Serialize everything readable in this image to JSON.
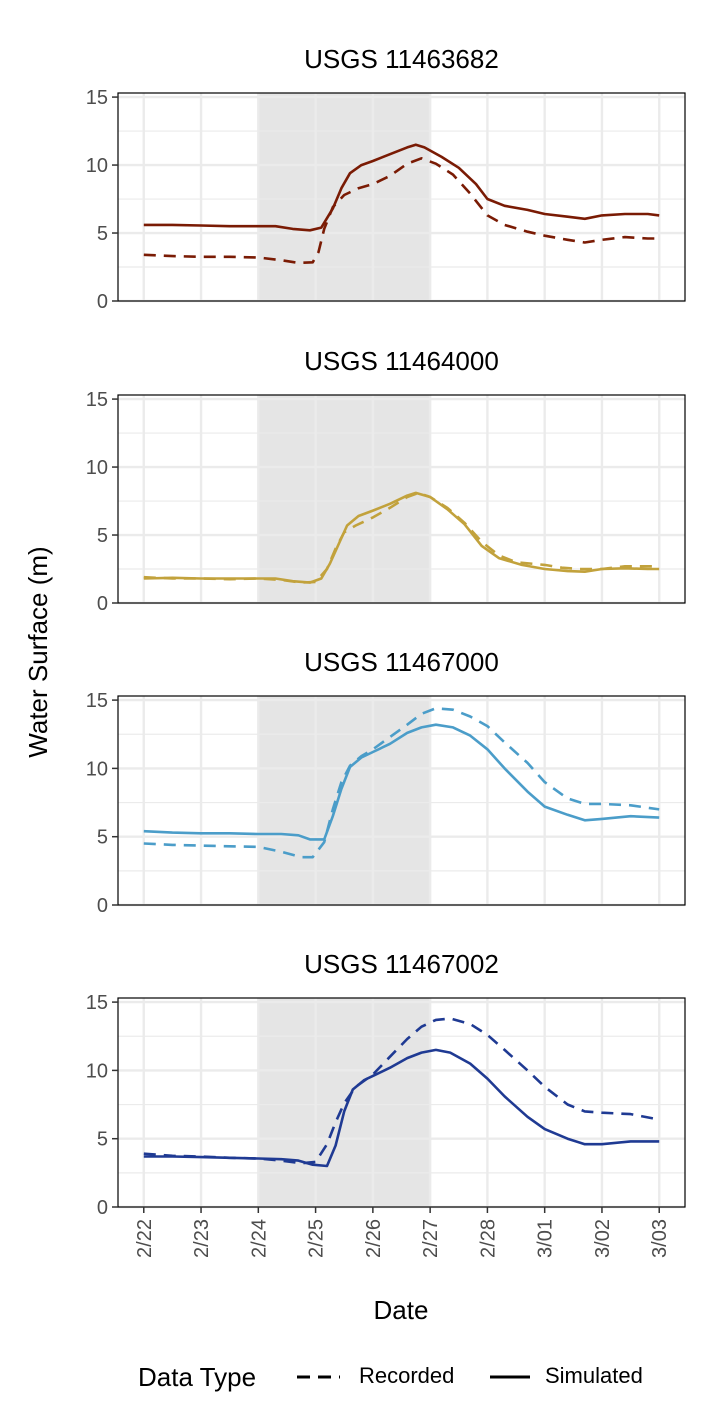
{
  "chart_data": {
    "type": "line",
    "ylabel": "Water Surface (m)",
    "xlabel": "Date",
    "x_tick_labels": [
      "2/22",
      "2/23",
      "2/24",
      "2/25",
      "2/26",
      "2/27",
      "2/28",
      "3/01",
      "3/02",
      "3/03"
    ],
    "x_tick_values": [
      0,
      1,
      2,
      3,
      4,
      5,
      6,
      7,
      8,
      9
    ],
    "x_range": [
      -0.45,
      9.45
    ],
    "y_range": [
      0,
      15.3
    ],
    "y_ticks": [
      0,
      5,
      10,
      15
    ],
    "shaded_interval": [
      2,
      5
    ],
    "grid": true,
    "legend": {
      "title": "Data Type",
      "position": "bottom",
      "entries": [
        "Recorded",
        "Simulated"
      ]
    },
    "panels": [
      {
        "title": "USGS 11463682",
        "color": "#7a1b04",
        "series": [
          {
            "name": "Recorded",
            "style": "dashed",
            "points": [
              [
                0,
                3.4
              ],
              [
                0.5,
                3.3
              ],
              [
                1,
                3.25
              ],
              [
                1.5,
                3.25
              ],
              [
                2,
                3.2
              ],
              [
                2.4,
                3.0
              ],
              [
                2.7,
                2.8
              ],
              [
                2.95,
                2.85
              ],
              [
                3.05,
                3.6
              ],
              [
                3.15,
                5.3
              ],
              [
                3.3,
                6.9
              ],
              [
                3.5,
                7.8
              ],
              [
                3.75,
                8.3
              ],
              [
                4,
                8.6
              ],
              [
                4.3,
                9.2
              ],
              [
                4.6,
                10.1
              ],
              [
                4.85,
                10.5
              ],
              [
                5.1,
                10.1
              ],
              [
                5.4,
                9.3
              ],
              [
                5.7,
                7.9
              ],
              [
                6,
                6.3
              ],
              [
                6.3,
                5.6
              ],
              [
                6.7,
                5.1
              ],
              [
                7,
                4.8
              ],
              [
                7.4,
                4.5
              ],
              [
                7.7,
                4.3
              ],
              [
                8,
                4.5
              ],
              [
                8.4,
                4.7
              ],
              [
                8.8,
                4.6
              ],
              [
                9,
                4.6
              ]
            ]
          },
          {
            "name": "Simulated",
            "style": "solid",
            "points": [
              [
                0,
                5.6
              ],
              [
                0.5,
                5.6
              ],
              [
                1,
                5.55
              ],
              [
                1.5,
                5.5
              ],
              [
                2,
                5.5
              ],
              [
                2.3,
                5.5
              ],
              [
                2.6,
                5.3
              ],
              [
                2.9,
                5.2
              ],
              [
                3.1,
                5.4
              ],
              [
                3.3,
                6.8
              ],
              [
                3.45,
                8.3
              ],
              [
                3.6,
                9.4
              ],
              [
                3.8,
                10.0
              ],
              [
                4,
                10.3
              ],
              [
                4.3,
                10.8
              ],
              [
                4.6,
                11.3
              ],
              [
                4.75,
                11.5
              ],
              [
                4.9,
                11.3
              ],
              [
                5.2,
                10.6
              ],
              [
                5.5,
                9.8
              ],
              [
                5.8,
                8.6
              ],
              [
                6,
                7.5
              ],
              [
                6.3,
                7.0
              ],
              [
                6.7,
                6.7
              ],
              [
                7,
                6.4
              ],
              [
                7.4,
                6.2
              ],
              [
                7.7,
                6.05
              ],
              [
                8,
                6.3
              ],
              [
                8.4,
                6.4
              ],
              [
                8.8,
                6.4
              ],
              [
                9,
                6.3
              ]
            ]
          }
        ]
      },
      {
        "title": "USGS 11464000",
        "color": "#c2a23c",
        "series": [
          {
            "name": "Recorded",
            "style": "dashed",
            "points": [
              [
                0,
                1.9
              ],
              [
                0.5,
                1.8
              ],
              [
                1,
                1.8
              ],
              [
                1.5,
                1.75
              ],
              [
                2,
                1.8
              ],
              [
                2.4,
                1.7
              ],
              [
                2.75,
                1.5
              ],
              [
                3,
                1.55
              ],
              [
                3.2,
                2.5
              ],
              [
                3.35,
                4.0
              ],
              [
                3.5,
                5.2
              ],
              [
                3.7,
                5.7
              ],
              [
                4,
                6.3
              ],
              [
                4.3,
                7.0
              ],
              [
                4.6,
                7.8
              ],
              [
                4.8,
                8.1
              ],
              [
                5,
                7.8
              ],
              [
                5.3,
                7.0
              ],
              [
                5.6,
                5.9
              ],
              [
                5.9,
                4.5
              ],
              [
                6.2,
                3.5
              ],
              [
                6.5,
                3.0
              ],
              [
                7,
                2.8
              ],
              [
                7.3,
                2.6
              ],
              [
                7.6,
                2.5
              ],
              [
                8,
                2.5
              ],
              [
                8.4,
                2.7
              ],
              [
                8.8,
                2.7
              ],
              [
                9,
                2.7
              ]
            ]
          },
          {
            "name": "Simulated",
            "style": "solid",
            "points": [
              [
                0,
                1.8
              ],
              [
                0.5,
                1.85
              ],
              [
                1,
                1.8
              ],
              [
                1.5,
                1.8
              ],
              [
                2,
                1.8
              ],
              [
                2.3,
                1.8
              ],
              [
                2.6,
                1.6
              ],
              [
                2.9,
                1.5
              ],
              [
                3.1,
                1.8
              ],
              [
                3.25,
                2.9
              ],
              [
                3.4,
                4.3
              ],
              [
                3.55,
                5.7
              ],
              [
                3.75,
                6.4
              ],
              [
                4,
                6.8
              ],
              [
                4.3,
                7.3
              ],
              [
                4.6,
                7.9
              ],
              [
                4.75,
                8.1
              ],
              [
                5,
                7.8
              ],
              [
                5.3,
                6.9
              ],
              [
                5.6,
                5.8
              ],
              [
                5.9,
                4.2
              ],
              [
                6.2,
                3.3
              ],
              [
                6.6,
                2.8
              ],
              [
                7,
                2.5
              ],
              [
                7.4,
                2.35
              ],
              [
                7.7,
                2.3
              ],
              [
                8,
                2.5
              ],
              [
                8.4,
                2.55
              ],
              [
                8.8,
                2.5
              ],
              [
                9,
                2.5
              ]
            ]
          }
        ]
      },
      {
        "title": "USGS 11467000",
        "color": "#4b9dc9",
        "series": [
          {
            "name": "Recorded",
            "style": "dashed",
            "points": [
              [
                0,
                4.5
              ],
              [
                0.5,
                4.4
              ],
              [
                1,
                4.35
              ],
              [
                1.5,
                4.3
              ],
              [
                2,
                4.25
              ],
              [
                2.4,
                3.9
              ],
              [
                2.75,
                3.5
              ],
              [
                2.95,
                3.5
              ],
              [
                3.15,
                4.6
              ],
              [
                3.3,
                7.0
              ],
              [
                3.45,
                9.0
              ],
              [
                3.6,
                10.2
              ],
              [
                3.8,
                10.9
              ],
              [
                4,
                11.4
              ],
              [
                4.3,
                12.3
              ],
              [
                4.6,
                13.2
              ],
              [
                4.85,
                14.0
              ],
              [
                5.1,
                14.4
              ],
              [
                5.4,
                14.3
              ],
              [
                5.7,
                13.8
              ],
              [
                6,
                13.1
              ],
              [
                6.3,
                11.9
              ],
              [
                6.7,
                10.4
              ],
              [
                7,
                9.0
              ],
              [
                7.4,
                7.8
              ],
              [
                7.7,
                7.4
              ],
              [
                8,
                7.4
              ],
              [
                8.5,
                7.3
              ],
              [
                9,
                7.0
              ]
            ]
          },
          {
            "name": "Simulated",
            "style": "solid",
            "points": [
              [
                0,
                5.4
              ],
              [
                0.5,
                5.3
              ],
              [
                1,
                5.25
              ],
              [
                1.5,
                5.25
              ],
              [
                2,
                5.2
              ],
              [
                2.4,
                5.2
              ],
              [
                2.7,
                5.1
              ],
              [
                2.9,
                4.8
              ],
              [
                3.15,
                4.8
              ],
              [
                3.3,
                6.5
              ],
              [
                3.45,
                8.5
              ],
              [
                3.6,
                10.1
              ],
              [
                3.8,
                10.8
              ],
              [
                4,
                11.2
              ],
              [
                4.3,
                11.8
              ],
              [
                4.6,
                12.6
              ],
              [
                4.85,
                13.0
              ],
              [
                5.1,
                13.2
              ],
              [
                5.4,
                13.0
              ],
              [
                5.7,
                12.4
              ],
              [
                6,
                11.4
              ],
              [
                6.3,
                10.0
              ],
              [
                6.7,
                8.3
              ],
              [
                7,
                7.2
              ],
              [
                7.4,
                6.6
              ],
              [
                7.7,
                6.2
              ],
              [
                8,
                6.3
              ],
              [
                8.5,
                6.5
              ],
              [
                9,
                6.4
              ]
            ]
          }
        ]
      },
      {
        "title": "USGS 11467002",
        "color": "#1f3a93",
        "series": [
          {
            "name": "Recorded",
            "style": "dashed",
            "points": [
              [
                0,
                3.9
              ],
              [
                0.5,
                3.75
              ],
              [
                1,
                3.7
              ],
              [
                1.5,
                3.6
              ],
              [
                2,
                3.55
              ],
              [
                2.4,
                3.4
              ],
              [
                2.75,
                3.2
              ],
              [
                3,
                3.3
              ],
              [
                3.2,
                4.6
              ],
              [
                3.35,
                6.2
              ],
              [
                3.5,
                7.6
              ],
              [
                3.7,
                8.8
              ],
              [
                4,
                9.7
              ],
              [
                4.3,
                11.0
              ],
              [
                4.6,
                12.3
              ],
              [
                4.85,
                13.2
              ],
              [
                5.1,
                13.7
              ],
              [
                5.35,
                13.8
              ],
              [
                5.7,
                13.4
              ],
              [
                6,
                12.6
              ],
              [
                6.3,
                11.5
              ],
              [
                6.7,
                10.0
              ],
              [
                7,
                8.8
              ],
              [
                7.4,
                7.5
              ],
              [
                7.7,
                7.0
              ],
              [
                8,
                6.9
              ],
              [
                8.5,
                6.8
              ],
              [
                9,
                6.4
              ]
            ]
          },
          {
            "name": "Simulated",
            "style": "solid",
            "points": [
              [
                0,
                3.7
              ],
              [
                0.5,
                3.7
              ],
              [
                1,
                3.65
              ],
              [
                1.5,
                3.6
              ],
              [
                2,
                3.55
              ],
              [
                2.4,
                3.5
              ],
              [
                2.7,
                3.4
              ],
              [
                2.95,
                3.1
              ],
              [
                3.2,
                3.0
              ],
              [
                3.35,
                4.5
              ],
              [
                3.5,
                7.0
              ],
              [
                3.65,
                8.6
              ],
              [
                3.85,
                9.3
              ],
              [
                4,
                9.6
              ],
              [
                4.3,
                10.2
              ],
              [
                4.6,
                10.9
              ],
              [
                4.85,
                11.3
              ],
              [
                5.1,
                11.5
              ],
              [
                5.35,
                11.3
              ],
              [
                5.7,
                10.5
              ],
              [
                6,
                9.4
              ],
              [
                6.3,
                8.1
              ],
              [
                6.7,
                6.6
              ],
              [
                7,
                5.7
              ],
              [
                7.4,
                5.0
              ],
              [
                7.7,
                4.6
              ],
              [
                8,
                4.6
              ],
              [
                8.5,
                4.8
              ],
              [
                9,
                4.8
              ]
            ]
          }
        ]
      }
    ]
  }
}
